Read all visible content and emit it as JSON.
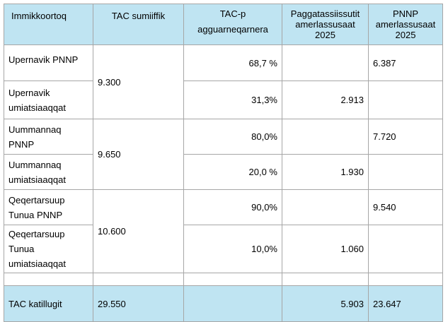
{
  "table": {
    "headers": [
      "Immikkoortoq",
      "TAC sumiiffik",
      "TAC-p agguarneqarnera",
      "Paggatassiissutit amerlassusaat 2025",
      "PNNP amerlassusaat 2025"
    ],
    "header_lines": [
      [
        "Immikkoortoq"
      ],
      [
        "TAC sumiiffik"
      ],
      [
        "TAC-p",
        "agguarneqarnera"
      ],
      [
        "Paggatassiissutit",
        "amerlassusaat",
        "2025"
      ],
      [
        "PNNP",
        "amerlassusaat",
        "2025"
      ]
    ],
    "groups": [
      {
        "tac": "9.300",
        "rows": [
          {
            "name_lines": [
              "Upernavik PNNP"
            ],
            "share": "68,7 %",
            "quota": "",
            "pnnp": "6.387"
          },
          {
            "name_lines": [
              "Upernavik",
              "umiatsiaaqqat"
            ],
            "share": "31,3%",
            "quota": "2.913",
            "pnnp": ""
          }
        ]
      },
      {
        "tac": "9.650",
        "rows": [
          {
            "name_lines": [
              "Uummannaq",
              "PNNP"
            ],
            "share": "80,0%",
            "quota": "",
            "pnnp": "7.720"
          },
          {
            "name_lines": [
              "Uummannaq",
              "umiatsiaaqqat"
            ],
            "share": "20,0 %",
            "quota": "1.930",
            "pnnp": ""
          }
        ]
      },
      {
        "tac": "10.600",
        "rows": [
          {
            "name_lines": [
              "Qeqertarsuup",
              "Tunua PNNP"
            ],
            "share": "90,0%",
            "quota": "",
            "pnnp": "9.540"
          },
          {
            "name_lines": [
              "Qeqertarsuup",
              "Tunua",
              "umiatsiaaqqat"
            ],
            "share": "10,0%",
            "quota": "1.060",
            "pnnp": ""
          }
        ]
      }
    ],
    "total": {
      "label": "TAC katillugit",
      "tac": "29.550",
      "share": "",
      "quota": "5.903",
      "pnnp": "23.647"
    }
  },
  "colors": {
    "header_bg": "#bfe4f2",
    "total_bg": "#bfe4f2",
    "border": "#a6a6a6"
  }
}
